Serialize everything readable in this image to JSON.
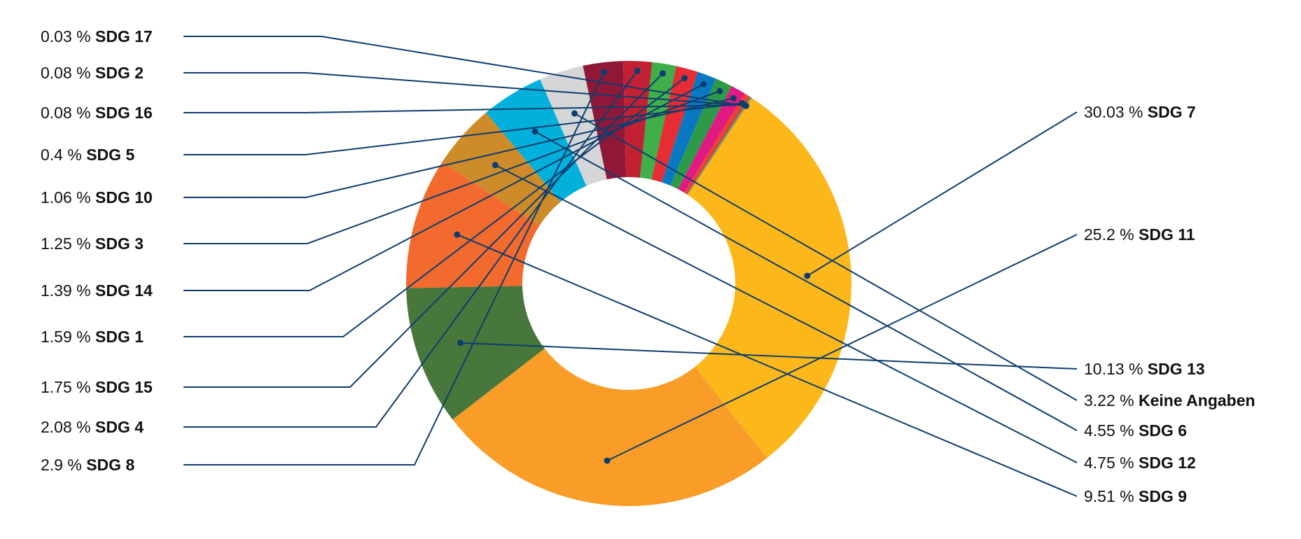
{
  "chart_data": {
    "type": "pie",
    "donut": true,
    "title": "",
    "slices": [
      {
        "label": "SDG 7",
        "value": 30.03,
        "display": "30.03 %",
        "color": "#FCB81A",
        "side": "right"
      },
      {
        "label": "SDG 11",
        "value": 25.2,
        "display": "25.2 %",
        "color": "#F99D28",
        "side": "right"
      },
      {
        "label": "SDG 13",
        "value": 10.13,
        "display": "10.13 %",
        "color": "#48773C",
        "side": "right"
      },
      {
        "label": "SDG 9",
        "value": 9.51,
        "display": "9.51 %",
        "color": "#F26A2D",
        "side": "right"
      },
      {
        "label": "SDG 12",
        "value": 4.75,
        "display": "4.75 %",
        "color": "#CD8B2A",
        "side": "right"
      },
      {
        "label": "SDG 6",
        "value": 4.55,
        "display": "4.55 %",
        "color": "#02B0DB",
        "side": "right"
      },
      {
        "label": "Keine Angaben",
        "value": 3.22,
        "display": "3.22 %",
        "color": "#D4D6D8",
        "side": "right"
      },
      {
        "label": "SDG 8",
        "value": 2.9,
        "display": "2.9 %",
        "color": "#8F1838",
        "side": "left"
      },
      {
        "label": "SDG 4",
        "value": 2.08,
        "display": "2.08 %",
        "color": "#C22033",
        "side": "left"
      },
      {
        "label": "SDG 15",
        "value": 1.75,
        "display": "1.75 %",
        "color": "#3EAF49",
        "side": "left"
      },
      {
        "label": "SDG 1",
        "value": 1.59,
        "display": "1.59 %",
        "color": "#E52D33",
        "side": "left"
      },
      {
        "label": "SDG 14",
        "value": 1.39,
        "display": "1.39 %",
        "color": "#0A78C1",
        "side": "left"
      },
      {
        "label": "SDG 3",
        "value": 1.25,
        "display": "1.25 %",
        "color": "#2C9A48",
        "side": "left"
      },
      {
        "label": "SDG 10",
        "value": 1.06,
        "display": "1.06 %",
        "color": "#E01A83",
        "side": "left"
      },
      {
        "label": "SDG 5",
        "value": 0.4,
        "display": "0.4 %",
        "color": "#EF402B",
        "side": "left"
      },
      {
        "label": "SDG 16",
        "value": 0.08,
        "display": "0.08 %",
        "color": "#10689A",
        "side": "left"
      },
      {
        "label": "SDG 2",
        "value": 0.08,
        "display": "0.08 %",
        "color": "#D4A12C",
        "side": "left"
      },
      {
        "label": "SDG 17",
        "value": 0.03,
        "display": "0.03 %",
        "color": "#1B3668",
        "side": "left"
      }
    ],
    "legend": "none",
    "labels": "leader-lines"
  }
}
